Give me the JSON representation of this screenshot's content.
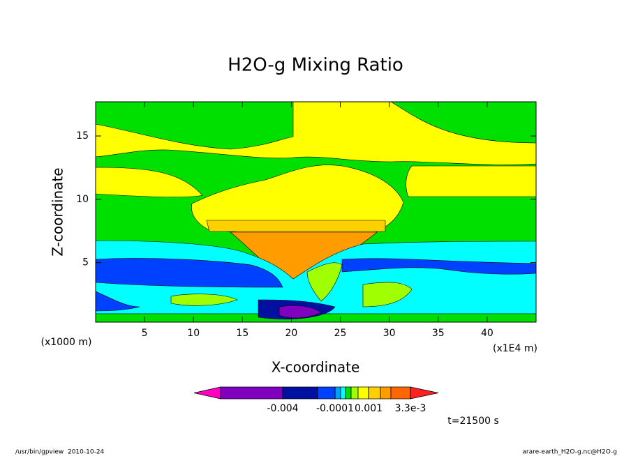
{
  "chart_data": {
    "type": "contour",
    "title": "H2O-g Mixing Ratio",
    "x_label": "X-coordinate",
    "y_label": "Z-coordinate",
    "x_unit": "(x1E4 m)",
    "y_unit": "(x1000 m)",
    "xlim": [
      0,
      45
    ],
    "ylim": [
      0.3,
      17.7
    ],
    "xticks": [
      5,
      10,
      15,
      20,
      25,
      30,
      35,
      40
    ],
    "yticks": [
      5,
      10,
      15
    ],
    "colorbar": {
      "colors": [
        "#ff00c0",
        "#8000c0",
        "#0010a0",
        "#0040ff",
        "#00a0ff",
        "#00ffff",
        "#00e000",
        "#a0ff00",
        "#ffff00",
        "#ffd000",
        "#ff9c00",
        "#ff6600",
        "#ff2020"
      ],
      "ticks": [
        {
          "value": -0.004,
          "label": "-0.004"
        },
        {
          "value": -0.0001,
          "label": "-0.0001"
        },
        {
          "value": 0.001,
          "label": "0.001"
        },
        {
          "value": 0.0033,
          "label": "3.3e-3"
        }
      ]
    },
    "time_label": "t=21500 s"
  },
  "footer": {
    "left": "/usr/bin/gpview  2010-10-24",
    "right": "arare-earth_H2O-g.nc@H2O-g"
  }
}
